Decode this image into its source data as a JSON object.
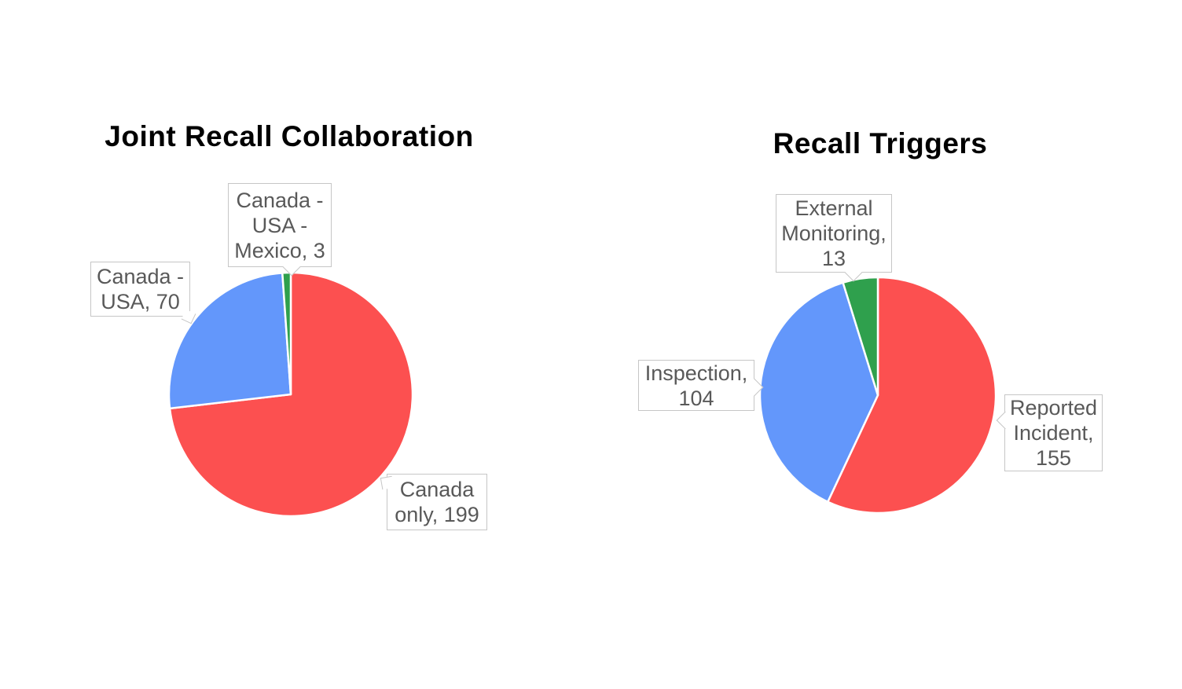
{
  "page": {
    "background_color": "#ffffff"
  },
  "palette": {
    "red": "#fc5050",
    "blue": "#6397fb",
    "green": "#2fa04d",
    "callout_border": "#c6c6c6",
    "callout_text": "#595959",
    "slice_divider": "#ffffff",
    "title_color": "#000000"
  },
  "chart_data": [
    {
      "type": "pie",
      "title": "Joint Recall Collaboration",
      "labels": [
        "Canada only",
        "Canada - USA",
        "Canada - USA - Mexico"
      ],
      "values": [
        199,
        70,
        3
      ],
      "colors": [
        "#fc5050",
        "#6397fb",
        "#2fa04d"
      ],
      "callouts": [
        {
          "text": "Canada\nonly, 199"
        },
        {
          "text": "Canada -\nUSA, 70"
        },
        {
          "text": "Canada -\nUSA -\nMexico, 3"
        }
      ],
      "start_angle_deg": 0,
      "direction": "clockwise",
      "legend": "none",
      "data_labels": "callout-boxes-with-leader-pointers"
    },
    {
      "type": "pie",
      "title": "Recall Triggers",
      "labels": [
        "Reported Incident",
        "Inspection",
        "External Monitoring"
      ],
      "values": [
        155,
        104,
        13
      ],
      "colors": [
        "#fc5050",
        "#6397fb",
        "#2fa04d"
      ],
      "callouts": [
        {
          "text": "Reported\nIncident,\n155"
        },
        {
          "text": "Inspection,\n104"
        },
        {
          "text": "External\nMonitoring,\n13"
        }
      ],
      "start_angle_deg": 0,
      "direction": "clockwise",
      "legend": "none",
      "data_labels": "callout-boxes-with-leader-pointers"
    }
  ]
}
